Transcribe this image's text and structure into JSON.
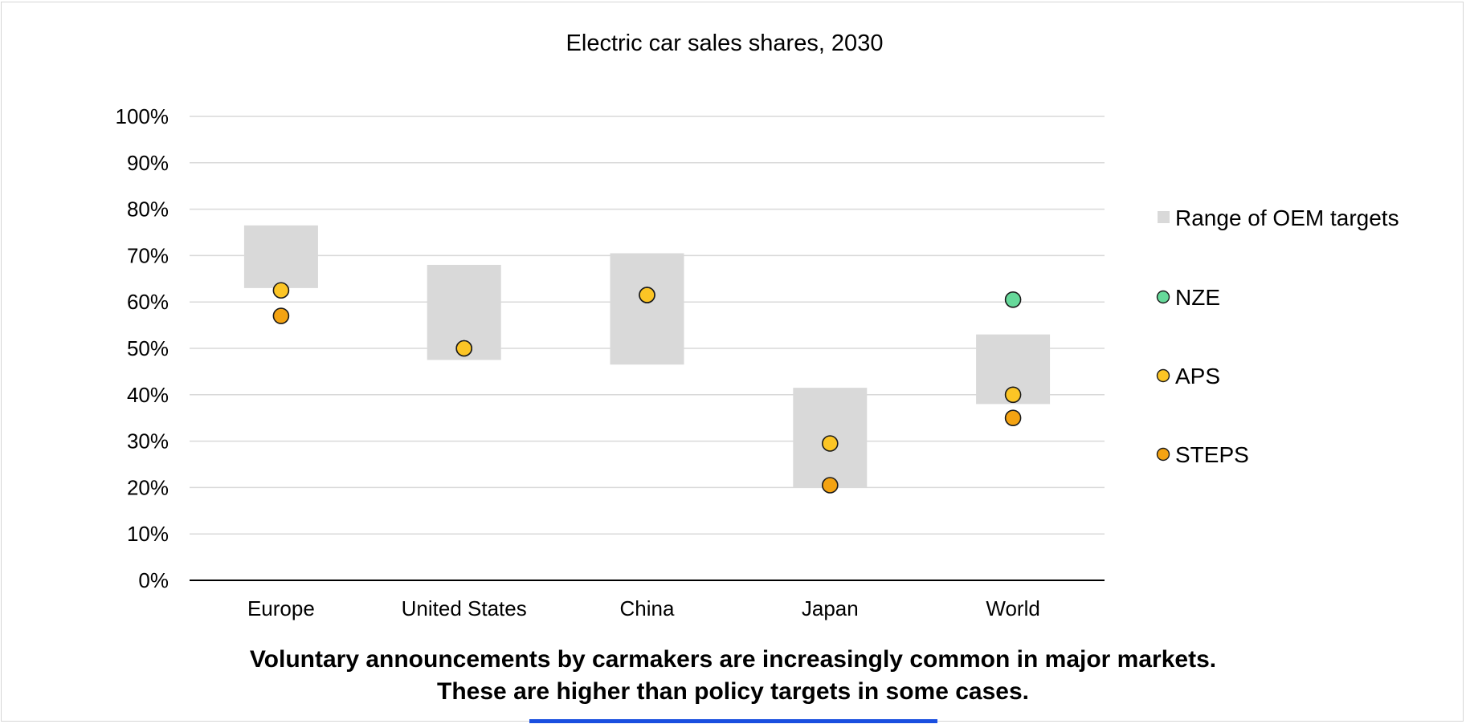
{
  "chart_data": {
    "type": "scatter",
    "title": "Electric car sales shares, 2030",
    "categories": [
      "Europe",
      "United States",
      "China",
      "Japan",
      "World"
    ],
    "y_ticks": [
      "0%",
      "10%",
      "20%",
      "30%",
      "40%",
      "50%",
      "60%",
      "70%",
      "80%",
      "90%",
      "100%"
    ],
    "ylim": [
      0,
      100
    ],
    "grid": true,
    "legend_position": "right",
    "range": {
      "name": "Range of OEM targets",
      "color": "#d9d9d9",
      "values": [
        [
          63,
          76.5
        ],
        [
          47.5,
          68
        ],
        [
          46.5,
          70.5
        ],
        [
          20,
          41.5
        ],
        [
          38,
          53
        ]
      ]
    },
    "series": [
      {
        "name": "NZE",
        "color": "#66d99a",
        "values": [
          null,
          null,
          null,
          null,
          60.5
        ]
      },
      {
        "name": "APS",
        "color": "#fcc525",
        "values": [
          62.5,
          50,
          61.5,
          29.5,
          40
        ]
      },
      {
        "name": "STEPS",
        "color": "#f4a312",
        "values": [
          57,
          50,
          61.5,
          20.5,
          35
        ]
      }
    ]
  },
  "caption": {
    "line1": "Voluntary announcements by carmakers are increasingly common in major markets.",
    "line2": "These are higher than policy targets in some cases."
  },
  "accent_color": "#1a4fe0"
}
